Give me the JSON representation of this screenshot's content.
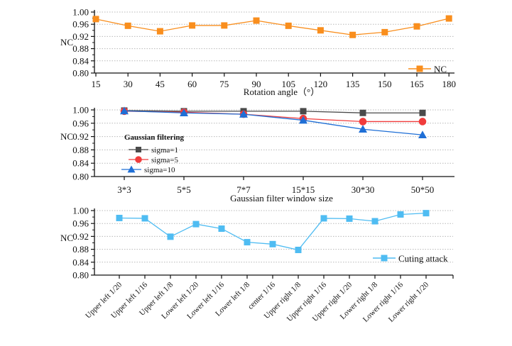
{
  "chart_data": [
    {
      "type": "line",
      "title": "",
      "xlabel": "Rotation angle（°）",
      "ylabel": "NC",
      "ylim": [
        0.8,
        1.0
      ],
      "yticks": [
        "0.80",
        "0.84",
        "0.88",
        "0.92",
        "0.96",
        "1.00"
      ],
      "grid": true,
      "legend_position": "bottom-right",
      "categories": [
        "15",
        "30",
        "45",
        "60",
        "75",
        "90",
        "105",
        "120",
        "135",
        "150",
        "165",
        "180"
      ],
      "series": [
        {
          "name": "NC",
          "color": "#f98e1d",
          "marker": "square",
          "values": [
            0.977,
            0.955,
            0.937,
            0.956,
            0.956,
            0.972,
            0.955,
            0.94,
            0.925,
            0.934,
            0.953,
            0.979
          ]
        }
      ]
    },
    {
      "type": "line",
      "title": "",
      "xlabel": "Gaussian filter window size",
      "ylabel": "NC",
      "ylim": [
        0.8,
        1.0
      ],
      "yticks": [
        "0.80",
        "0.84",
        "0.88",
        "0.92",
        "0.96",
        "1.00"
      ],
      "grid": true,
      "legend_title": "Gaussian filtering",
      "legend_position": "left",
      "categories": [
        "3*3",
        "5*5",
        "7*7",
        "15*15",
        "30*30",
        "50*50"
      ],
      "series": [
        {
          "name": "sigma=1",
          "color": "#4a4a4a",
          "marker": "square",
          "values": [
            0.998,
            0.996,
            0.996,
            0.996,
            0.991,
            0.991
          ]
        },
        {
          "name": "sigma=5",
          "color": "#f03c3c",
          "marker": "circle",
          "values": [
            0.996,
            0.993,
            0.987,
            0.974,
            0.965,
            0.965
          ]
        },
        {
          "name": "sigma=10",
          "color": "#1f6fd6",
          "marker": "triangle",
          "values": [
            0.997,
            0.991,
            0.987,
            0.969,
            0.942,
            0.925
          ]
        }
      ]
    },
    {
      "type": "line",
      "title": "",
      "xlabel": "",
      "ylabel": "NC",
      "ylim": [
        0.8,
        1.0
      ],
      "yticks": [
        "0.80",
        "0.84",
        "0.88",
        "0.92",
        "0.96",
        "1.00"
      ],
      "grid": true,
      "legend_position": "bottom-right",
      "categories": [
        "Upper left 1/20",
        "Upper left 1/16",
        "Upper left 1/8",
        "Lower left 1/20",
        "Lower left 1/16",
        "Lower left 1/8",
        "center 1/16",
        "Upper right 1/8",
        "Upper right 1/16",
        "Upper right 1/20",
        "Lower right 1/8",
        "Lower right 1/16",
        "Lower right 1/20"
      ],
      "series": [
        {
          "name": "Cuting attack",
          "color": "#4fbcf2",
          "marker": "square",
          "values": [
            0.977,
            0.976,
            0.919,
            0.958,
            0.944,
            0.902,
            0.896,
            0.878,
            0.976,
            0.975,
            0.967,
            0.988,
            0.992
          ]
        }
      ]
    }
  ]
}
